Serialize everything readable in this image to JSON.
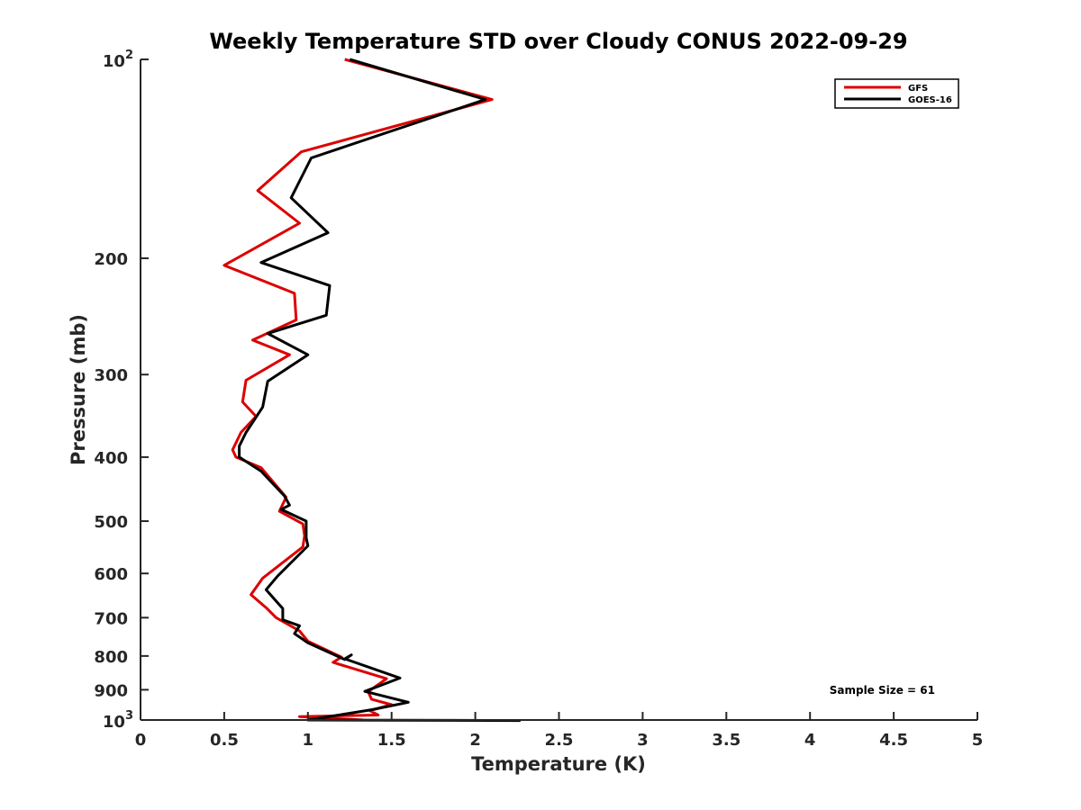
{
  "chart_data": {
    "type": "line",
    "title": "Weekly Temperature STD over Cloudy CONUS 2022-09-29",
    "xlabel": "Temperature (K)",
    "ylabel": "Pressure (mb)",
    "xlim": [
      0,
      5
    ],
    "ylim": [
      1000,
      100
    ],
    "y_scale": "log",
    "y_reversed": true,
    "x_ticks": [
      "0",
      "0.5",
      "1",
      "1.5",
      "2",
      "2.5",
      "3",
      "3.5",
      "4",
      "4.5",
      "5"
    ],
    "y_ticks": [
      {
        "value": 100,
        "label": "10",
        "sup": "2"
      },
      {
        "value": 200,
        "label": "200"
      },
      {
        "value": 300,
        "label": "300"
      },
      {
        "value": 400,
        "label": "400"
      },
      {
        "value": 500,
        "label": "500"
      },
      {
        "value": 600,
        "label": "600"
      },
      {
        "value": 700,
        "label": "700"
      },
      {
        "value": 800,
        "label": "800"
      },
      {
        "value": 900,
        "label": "900"
      },
      {
        "value": 1000,
        "label": "10",
        "sup": "3"
      }
    ],
    "grid": false,
    "legend_position": "top-right",
    "annotation": "Sample Size = 61",
    "series": [
      {
        "name": "GFS",
        "color": "#dd0000",
        "points": [
          [
            1.22,
            100
          ],
          [
            2.1,
            115
          ],
          [
            0.96,
            138
          ],
          [
            0.7,
            158
          ],
          [
            0.95,
            177
          ],
          [
            0.5,
            205
          ],
          [
            0.92,
            226
          ],
          [
            0.93,
            248
          ],
          [
            0.67,
            266
          ],
          [
            0.89,
            280
          ],
          [
            0.63,
            306
          ],
          [
            0.61,
            330
          ],
          [
            0.69,
            347
          ],
          [
            0.6,
            367
          ],
          [
            0.55,
            390
          ],
          [
            0.57,
            400
          ],
          [
            0.72,
            415
          ],
          [
            0.87,
            460
          ],
          [
            0.83,
            483
          ],
          [
            0.97,
            505
          ],
          [
            0.98,
            526
          ],
          [
            0.97,
            547
          ],
          [
            0.73,
            610
          ],
          [
            0.66,
            646
          ],
          [
            0.75,
            676
          ],
          [
            0.81,
            700
          ],
          [
            0.95,
            733
          ],
          [
            1.0,
            760
          ],
          [
            1.2,
            803
          ],
          [
            1.15,
            818
          ],
          [
            1.47,
            866
          ],
          [
            1.36,
            906
          ],
          [
            1.38,
            930
          ],
          [
            1.5,
            948
          ],
          [
            1.37,
            968
          ],
          [
            1.42,
            983
          ],
          [
            0.95,
            988
          ],
          [
            1.33,
            1000
          ]
        ]
      },
      {
        "name": "GOES-16",
        "color": "#000000",
        "points": [
          [
            1.25,
            100
          ],
          [
            2.06,
            115
          ],
          [
            1.02,
            141
          ],
          [
            0.9,
            162
          ],
          [
            1.12,
            183
          ],
          [
            0.72,
            203
          ],
          [
            1.13,
            220
          ],
          [
            1.11,
            244
          ],
          [
            0.76,
            260
          ],
          [
            1.0,
            280
          ],
          [
            0.76,
            307
          ],
          [
            0.73,
            336
          ],
          [
            0.63,
            367
          ],
          [
            0.59,
            385
          ],
          [
            0.59,
            400
          ],
          [
            0.72,
            420
          ],
          [
            0.86,
            458
          ],
          [
            0.89,
            473
          ],
          [
            0.84,
            480
          ],
          [
            0.99,
            500
          ],
          [
            0.99,
            530
          ],
          [
            1.0,
            545
          ],
          [
            0.82,
            605
          ],
          [
            0.75,
            635
          ],
          [
            0.82,
            665
          ],
          [
            0.85,
            678
          ],
          [
            0.85,
            705
          ],
          [
            0.95,
            720
          ],
          [
            0.92,
            740
          ],
          [
            1.0,
            764
          ],
          [
            1.22,
            810
          ],
          [
            1.26,
            797
          ],
          [
            1.22,
            808
          ],
          [
            1.55,
            864
          ],
          [
            1.34,
            905
          ],
          [
            1.6,
            940
          ],
          [
            1.38,
            965
          ],
          [
            1.0,
            1000
          ],
          [
            2.27,
            1002
          ]
        ]
      }
    ]
  }
}
